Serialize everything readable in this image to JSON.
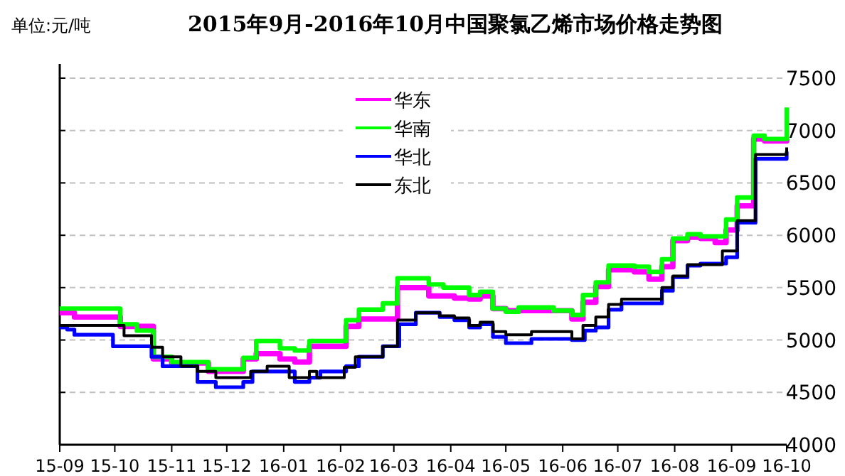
{
  "chart_data": {
    "type": "step",
    "title": "2015年9月-2016年10月中国聚氯乙烯市场价格走势图",
    "ylabel": "单位:元/吨",
    "xlim": [
      "2015-09-01",
      "2016-10-01"
    ],
    "xticks": [
      {
        "value": "2015-09-01",
        "label": "15-09"
      },
      {
        "value": "2015-10-01",
        "label": "15-10"
      },
      {
        "value": "2015-11-01",
        "label": "15-11"
      },
      {
        "value": "2015-12-01",
        "label": "15-12"
      },
      {
        "value": "2016-01-01",
        "label": "16-01"
      },
      {
        "value": "2016-02-01",
        "label": "16-02"
      },
      {
        "value": "2016-03-01",
        "label": "16-03"
      },
      {
        "value": "2016-04-01",
        "label": "16-04"
      },
      {
        "value": "2016-05-01",
        "label": "16-05"
      },
      {
        "value": "2016-06-01",
        "label": "16-06"
      },
      {
        "value": "2016-07-01",
        "label": "16-07"
      },
      {
        "value": "2016-08-01",
        "label": "16-08"
      },
      {
        "value": "2016-09-01",
        "label": "16-09"
      },
      {
        "value": "2016-10-01",
        "label": "16-10"
      }
    ],
    "ylim": [
      4000,
      7500
    ],
    "yticks": [
      4000,
      4500,
      5000,
      5500,
      6000,
      6500,
      7000,
      7500
    ],
    "grid": "y",
    "legend": "top",
    "line_style": "solid",
    "series": [
      {
        "name": "华东",
        "color": "#ff00ff",
        "x": [
          "2015-09-01",
          "2015-09-09",
          "2015-10-04",
          "2015-10-22",
          "2015-11-01",
          "2015-11-21",
          "2015-12-10",
          "2015-12-17",
          "2015-12-30",
          "2016-01-07",
          "2016-01-15",
          "2016-02-04",
          "2016-02-11",
          "2016-03-03",
          "2016-03-20",
          "2016-04-03",
          "2016-04-11",
          "2016-04-17",
          "2016-04-24",
          "2016-05-01",
          "2016-06-06",
          "2016-06-12",
          "2016-06-19",
          "2016-06-26",
          "2016-07-10",
          "2016-07-18",
          "2016-07-25",
          "2016-07-31",
          "2016-08-08",
          "2016-08-15",
          "2016-08-23",
          "2016-08-29",
          "2016-09-04",
          "2016-09-13",
          "2016-09-19",
          "2016-10-01"
        ],
        "values": [
          5260,
          5220,
          5130,
          4820,
          4780,
          4700,
          4820,
          4870,
          4820,
          4790,
          4940,
          5130,
          5200,
          5500,
          5420,
          5400,
          5390,
          5420,
          5300,
          5280,
          5200,
          5360,
          5510,
          5670,
          5650,
          5580,
          5700,
          5950,
          5980,
          5970,
          5930,
          6050,
          6280,
          6920,
          6900,
          6920
        ]
      },
      {
        "name": "华南",
        "color": "#00ff00",
        "x": [
          "2015-09-01",
          "2015-10-04",
          "2015-10-13",
          "2015-10-22",
          "2015-11-01",
          "2015-11-21",
          "2015-12-10",
          "2015-12-17",
          "2015-12-30",
          "2016-01-07",
          "2016-01-15",
          "2016-02-04",
          "2016-02-11",
          "2016-02-24",
          "2016-03-03",
          "2016-03-20",
          "2016-03-28",
          "2016-04-11",
          "2016-04-17",
          "2016-04-24",
          "2016-05-01",
          "2016-05-08",
          "2016-05-27",
          "2016-06-06",
          "2016-06-12",
          "2016-06-19",
          "2016-06-26",
          "2016-07-10",
          "2016-07-18",
          "2016-07-25",
          "2016-07-31",
          "2016-08-08",
          "2016-08-15",
          "2016-08-29",
          "2016-09-04",
          "2016-09-13",
          "2016-09-19",
          "2016-10-01"
        ],
        "values": [
          5300,
          5150,
          5090,
          4840,
          4790,
          4720,
          4830,
          4990,
          4920,
          4900,
          4990,
          5190,
          5290,
          5350,
          5590,
          5530,
          5500,
          5430,
          5460,
          5300,
          5270,
          5310,
          5280,
          5240,
          5430,
          5550,
          5710,
          5700,
          5650,
          5770,
          5970,
          6010,
          5990,
          6150,
          6360,
          6950,
          6920,
          7220
        ]
      },
      {
        "name": "华北",
        "color": "#0000ff",
        "x": [
          "2015-09-01",
          "2015-09-05",
          "2015-09-09",
          "2015-09-30",
          "2015-10-21",
          "2015-10-27",
          "2015-11-15",
          "2015-11-25",
          "2015-12-10",
          "2015-12-15",
          "2016-01-07",
          "2016-01-15",
          "2016-01-21",
          "2016-02-04",
          "2016-02-11",
          "2016-02-24",
          "2016-03-04",
          "2016-03-13",
          "2016-03-26",
          "2016-04-03",
          "2016-04-11",
          "2016-04-17",
          "2016-04-24",
          "2016-05-01",
          "2016-05-15",
          "2016-06-06",
          "2016-06-13",
          "2016-06-19",
          "2016-06-26",
          "2016-07-03",
          "2016-07-25",
          "2016-07-31",
          "2016-08-08",
          "2016-08-15",
          "2016-08-29",
          "2016-09-04",
          "2016-09-14",
          "2016-10-01"
        ],
        "values": [
          5120,
          5100,
          5050,
          4940,
          4840,
          4750,
          4600,
          4550,
          4600,
          4700,
          4600,
          4640,
          4700,
          4750,
          4840,
          4940,
          5150,
          5260,
          5220,
          5190,
          5120,
          5150,
          5030,
          4970,
          5010,
          5000,
          5090,
          5120,
          5290,
          5350,
          5470,
          5600,
          5710,
          5730,
          5790,
          6120,
          6730,
          6800
        ]
      },
      {
        "name": "东北",
        "color": "#000000",
        "x": [
          "2015-09-01",
          "2015-10-06",
          "2015-10-21",
          "2015-10-27",
          "2015-11-06",
          "2015-11-15",
          "2015-11-25",
          "2015-12-14",
          "2015-12-23",
          "2016-01-04",
          "2016-01-15",
          "2016-01-19",
          "2016-02-03",
          "2016-02-09",
          "2016-02-24",
          "2016-03-03",
          "2016-03-13",
          "2016-03-26",
          "2016-04-03",
          "2016-04-11",
          "2016-04-17",
          "2016-04-24",
          "2016-05-01",
          "2016-05-15",
          "2016-06-06",
          "2016-06-12",
          "2016-06-19",
          "2016-06-26",
          "2016-07-03",
          "2016-07-25",
          "2016-07-31",
          "2016-08-08",
          "2016-08-27",
          "2016-09-04",
          "2016-09-14",
          "2016-10-01"
        ],
        "values": [
          5140,
          5040,
          4930,
          4840,
          4750,
          4700,
          4640,
          4700,
          4750,
          4640,
          4700,
          4640,
          4740,
          4840,
          4940,
          5190,
          5260,
          5230,
          5210,
          5140,
          5170,
          5080,
          5050,
          5080,
          5010,
          5140,
          5220,
          5340,
          5390,
          5500,
          5610,
          5720,
          5850,
          6140,
          6770,
          6840
        ]
      }
    ]
  }
}
